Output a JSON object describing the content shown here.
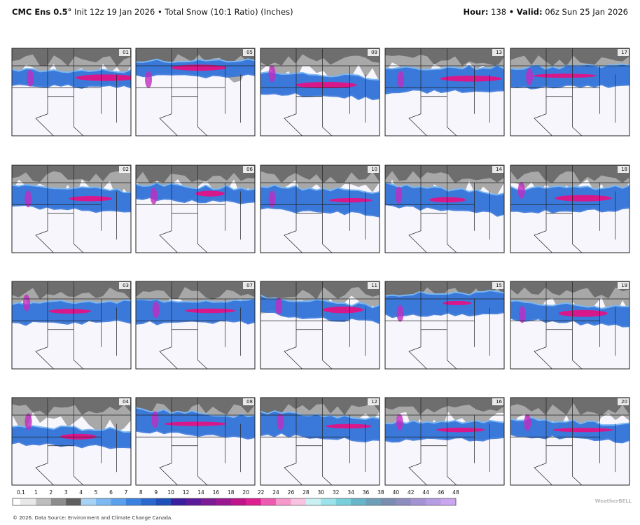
{
  "header": {
    "model": "CMC Ens 0.5°",
    "description": "Init 12z 19 Jan 2026 • Total Snow (10:1 Ratio) (Inches)",
    "hour_label": "Hour:",
    "hour": "138",
    "separator": "•",
    "valid_label": "Valid:",
    "valid": "06z Sun 25 Jan 2026"
  },
  "panels": [
    {
      "member": "01"
    },
    {
      "member": "02"
    },
    {
      "member": "03"
    },
    {
      "member": "04"
    },
    {
      "member": "05"
    },
    {
      "member": "06"
    },
    {
      "member": "07"
    },
    {
      "member": "08"
    },
    {
      "member": "09"
    },
    {
      "member": "10"
    },
    {
      "member": "11"
    },
    {
      "member": "12"
    },
    {
      "member": "13"
    },
    {
      "member": "14"
    },
    {
      "member": "15"
    },
    {
      "member": "16"
    },
    {
      "member": "17"
    },
    {
      "member": "18"
    },
    {
      "member": "19"
    },
    {
      "member": "20"
    }
  ],
  "colorbar": {
    "labels": [
      "0.1",
      "1",
      "2",
      "3",
      "4",
      "5",
      "6",
      "7",
      "8",
      "9",
      "10",
      "12",
      "14",
      "16",
      "18",
      "20",
      "22",
      "24",
      "26",
      "28",
      "30",
      "32",
      "34",
      "36",
      "38",
      "40",
      "42",
      "44",
      "46",
      "48"
    ]
  },
  "footer": "© 2026. Data Source: Environment and Climate Change Canada.",
  "logo": "WeatherBELL"
}
